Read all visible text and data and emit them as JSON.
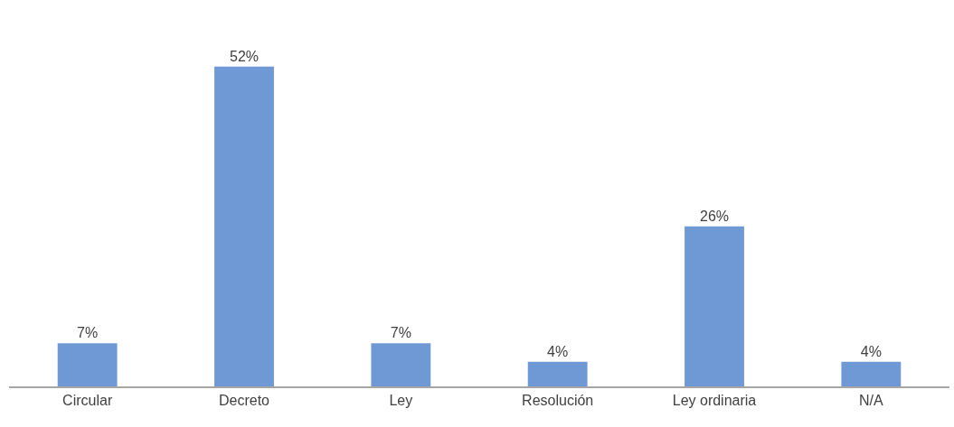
{
  "chart_data": {
    "type": "bar",
    "categories": [
      "Circular",
      "Decreto",
      "Ley",
      "Resolución",
      "Ley ordinaria",
      "N/A"
    ],
    "values": [
      7,
      52,
      7,
      4,
      26,
      4
    ],
    "value_labels": [
      "7%",
      "52%",
      "7%",
      "4%",
      "26%",
      "4%"
    ],
    "color": "#6f99d4",
    "legend": false
  }
}
